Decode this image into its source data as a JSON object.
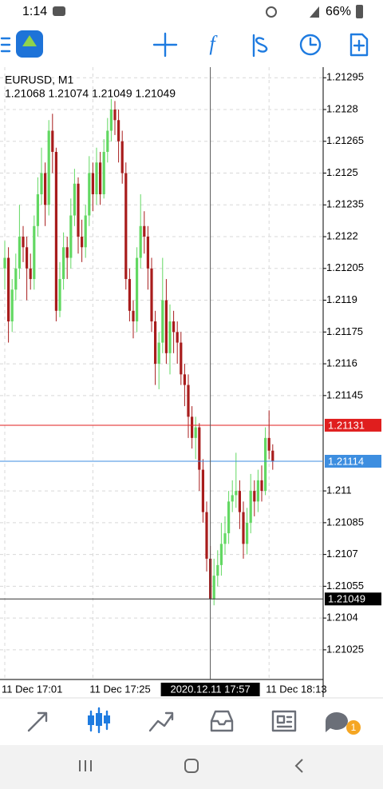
{
  "status_bar": {
    "time": "1:14",
    "battery": "66%"
  },
  "chart_data": {
    "type": "candlestick",
    "symbol": "EURUSD, M1",
    "info": "1.21068 1.21074 1.21049 1.21049",
    "crosshair": {
      "category": 56,
      "value": 1.21049,
      "label": "2020.12.11 17:57"
    },
    "price_lines": [
      {
        "value": 1.21131,
        "color": "#e01e1e"
      },
      {
        "value": 1.21114,
        "color": "#3d8ee0"
      }
    ],
    "up_color": "#62d862",
    "down_color": "#a81c1c",
    "grid": true,
    "ylim": [
      1.21011,
      1.213
    ],
    "yticks": [
      1.21295,
      1.2128,
      1.21265,
      1.2125,
      1.21235,
      1.2122,
      1.21205,
      1.2119,
      1.21175,
      1.2116,
      1.21145,
      1.211,
      1.21085,
      1.2107,
      1.21055,
      1.2104,
      1.21025
    ],
    "categories": [
      "11 Dec 17:01",
      null,
      null,
      null,
      null,
      null,
      null,
      null,
      null,
      null,
      null,
      null,
      null,
      null,
      null,
      null,
      null,
      null,
      null,
      null,
      null,
      null,
      null,
      null,
      "11 Dec 17:25",
      null,
      null,
      null,
      null,
      null,
      null,
      null,
      null,
      null,
      null,
      null,
      null,
      null,
      null,
      null,
      null,
      null,
      null,
      null,
      null,
      null,
      null,
      null,
      null,
      null,
      null,
      null,
      null,
      null,
      null,
      null,
      null,
      null,
      null,
      null,
      null,
      null,
      null,
      null,
      null,
      null,
      null,
      null,
      null,
      null,
      null,
      null,
      "11 Dec 18:13",
      null
    ],
    "ohlc": [
      [
        1.21205,
        1.21218,
        1.21195,
        1.2121
      ],
      [
        1.2121,
        1.21215,
        1.2117,
        1.2118
      ],
      [
        1.2118,
        1.212,
        1.21175,
        1.21195
      ],
      [
        1.21195,
        1.21212,
        1.2119,
        1.21205
      ],
      [
        1.21205,
        1.21235,
        1.212,
        1.2122
      ],
      [
        1.2122,
        1.21225,
        1.21208,
        1.21215
      ],
      [
        1.21215,
        1.2122,
        1.2119,
        1.21205
      ],
      [
        1.21205,
        1.21212,
        1.21195,
        1.212
      ],
      [
        1.212,
        1.2123,
        1.21195,
        1.21225
      ],
      [
        1.21225,
        1.21248,
        1.2122,
        1.2124
      ],
      [
        1.2124,
        1.21262,
        1.21235,
        1.2125
      ],
      [
        1.2125,
        1.21255,
        1.21225,
        1.21235
      ],
      [
        1.21235,
        1.21275,
        1.2123,
        1.2127
      ],
      [
        1.2127,
        1.21278,
        1.2125,
        1.2126
      ],
      [
        1.2126,
        1.21262,
        1.2118,
        1.21185
      ],
      [
        1.21185,
        1.21208,
        1.21182,
        1.212
      ],
      [
        1.212,
        1.21222,
        1.21195,
        1.21215
      ],
      [
        1.21215,
        1.2122,
        1.212,
        1.2121
      ],
      [
        1.2121,
        1.21238,
        1.21205,
        1.2123
      ],
      [
        1.2123,
        1.21252,
        1.21225,
        1.21245
      ],
      [
        1.21245,
        1.21248,
        1.21212,
        1.2122
      ],
      [
        1.2122,
        1.21228,
        1.21208,
        1.21215
      ],
      [
        1.21215,
        1.21235,
        1.2121,
        1.2123
      ],
      [
        1.2123,
        1.21258,
        1.21225,
        1.2125
      ],
      [
        1.2125,
        1.21255,
        1.21232,
        1.2124
      ],
      [
        1.2124,
        1.21262,
        1.21235,
        1.21255
      ],
      [
        1.21255,
        1.2126,
        1.21235,
        1.2124
      ],
      [
        1.2124,
        1.21266,
        1.21238,
        1.2126
      ],
      [
        1.2126,
        1.21276,
        1.21255,
        1.2127
      ],
      [
        1.2127,
        1.21285,
        1.21265,
        1.2128
      ],
      [
        1.2128,
        1.21284,
        1.21268,
        1.21275
      ],
      [
        1.21275,
        1.2128,
        1.21255,
        1.21265
      ],
      [
        1.21265,
        1.2127,
        1.21245,
        1.2125
      ],
      [
        1.2125,
        1.21255,
        1.21195,
        1.212
      ],
      [
        1.212,
        1.21205,
        1.2118,
        1.21185
      ],
      [
        1.21185,
        1.2119,
        1.21172,
        1.2118
      ],
      [
        1.2118,
        1.21215,
        1.21175,
        1.2121
      ],
      [
        1.2121,
        1.2124,
        1.21205,
        1.21225
      ],
      [
        1.21225,
        1.21232,
        1.21212,
        1.2122
      ],
      [
        1.2122,
        1.21225,
        1.21195,
        1.21205
      ],
      [
        1.21205,
        1.2121,
        1.21175,
        1.2118
      ],
      [
        1.2118,
        1.21185,
        1.2115,
        1.2116
      ],
      [
        1.2116,
        1.21175,
        1.21148,
        1.2117
      ],
      [
        1.2117,
        1.2121,
        1.21165,
        1.2119
      ],
      [
        1.2119,
        1.212,
        1.2116,
        1.21165
      ],
      [
        1.21165,
        1.21188,
        1.21155,
        1.2118
      ],
      [
        1.2118,
        1.21185,
        1.21165,
        1.21175
      ],
      [
        1.21175,
        1.2118,
        1.2116,
        1.2117
      ],
      [
        1.2117,
        1.21175,
        1.2115,
        1.21155
      ],
      [
        1.21155,
        1.2116,
        1.2114,
        1.2115
      ],
      [
        1.2115,
        1.21155,
        1.21125,
        1.21135
      ],
      [
        1.21135,
        1.2114,
        1.2112,
        1.21125
      ],
      [
        1.21125,
        1.21135,
        1.21115,
        1.2113
      ],
      [
        1.2113,
        1.21132,
        1.211,
        1.2111
      ],
      [
        1.2111,
        1.21115,
        1.21085,
        1.2109
      ],
      [
        1.2109,
        1.21095,
        1.21062,
        1.21068
      ],
      [
        1.21068,
        1.21074,
        1.21049,
        1.21049
      ],
      [
        1.21049,
        1.21068,
        1.21046,
        1.2106
      ],
      [
        1.2106,
        1.21072,
        1.21055,
        1.21065
      ],
      [
        1.21065,
        1.21085,
        1.2106,
        1.21075
      ],
      [
        1.21075,
        1.21088,
        1.2107,
        1.2108
      ],
      [
        1.2108,
        1.211,
        1.21075,
        1.21095
      ],
      [
        1.21095,
        1.21105,
        1.2109,
        1.21098
      ],
      [
        1.21098,
        1.21118,
        1.21092,
        1.211
      ],
      [
        1.211,
        1.21105,
        1.21082,
        1.2109
      ],
      [
        1.2109,
        1.21095,
        1.21068,
        1.21075
      ],
      [
        1.21075,
        1.21092,
        1.2107,
        1.21085
      ],
      [
        1.21085,
        1.21108,
        1.2108,
        1.211
      ],
      [
        1.211,
        1.21105,
        1.21088,
        1.21095
      ],
      [
        1.21095,
        1.2111,
        1.2109,
        1.21105
      ],
      [
        1.21105,
        1.21112,
        1.21095,
        1.211
      ],
      [
        1.211,
        1.2113,
        1.21098,
        1.21125
      ],
      [
        1.21125,
        1.21138,
        1.21115,
        1.21119
      ],
      [
        1.21119,
        1.21122,
        1.2111,
        1.21114
      ]
    ]
  },
  "tab_bar": {
    "badge": "1"
  }
}
